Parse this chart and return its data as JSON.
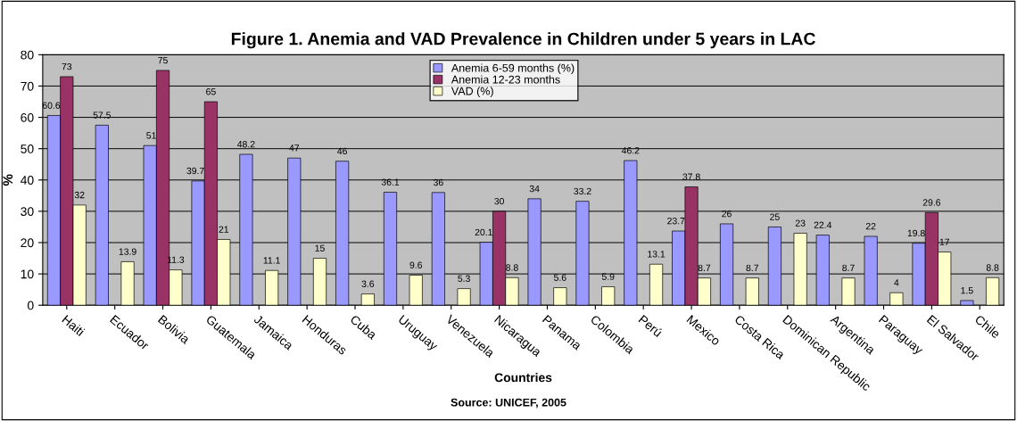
{
  "chart_data": {
    "type": "bar",
    "title": "Figure 1. Anemia and VAD Prevalence in Children under 5 years in LAC",
    "xlabel": "Countries",
    "ylabel": "%",
    "annotations": [
      "Source: UNICEF, 2005"
    ],
    "categories": [
      "Haiti",
      "Ecuador",
      "Bolivia",
      "Guatemala",
      "Jamaica",
      "Honduras",
      "Cuba",
      "Uruguay",
      "Venezuela",
      "Nicaragua",
      "Panama",
      "Colombia",
      "Perú",
      "Mexico",
      "Costa Rica",
      "Dominican Republic",
      "Argentina",
      "Paraguay",
      "El Salvador",
      "Chile"
    ],
    "series": [
      {
        "name": "Anemia 6-59 months (%)",
        "color": "#9999ff",
        "values": [
          60.6,
          57.5,
          51,
          39.7,
          48.2,
          47,
          46,
          36.1,
          36,
          20.1,
          34,
          33.2,
          46.2,
          23.7,
          26,
          25,
          22.4,
          22,
          19.8,
          1.5
        ]
      },
      {
        "name": "Anemia 12-23 months",
        "color": "#993366",
        "values": [
          73,
          null,
          75,
          65,
          null,
          null,
          null,
          null,
          null,
          30,
          null,
          null,
          null,
          37.8,
          null,
          null,
          null,
          null,
          29.6,
          null
        ]
      },
      {
        "name": "VAD (%)",
        "color": "#ffffcc",
        "values": [
          32,
          13.9,
          11.3,
          21,
          11.1,
          15,
          3.6,
          9.6,
          5.3,
          8.8,
          5.6,
          5.9,
          13.1,
          8.7,
          8.7,
          23,
          8.7,
          4,
          17,
          8.8
        ]
      }
    ],
    "ylim": [
      0,
      80
    ],
    "yticks": [
      0,
      10,
      20,
      30,
      40,
      50,
      60,
      70,
      80
    ],
    "grid": "y",
    "legend": "top",
    "data_labels": true
  }
}
